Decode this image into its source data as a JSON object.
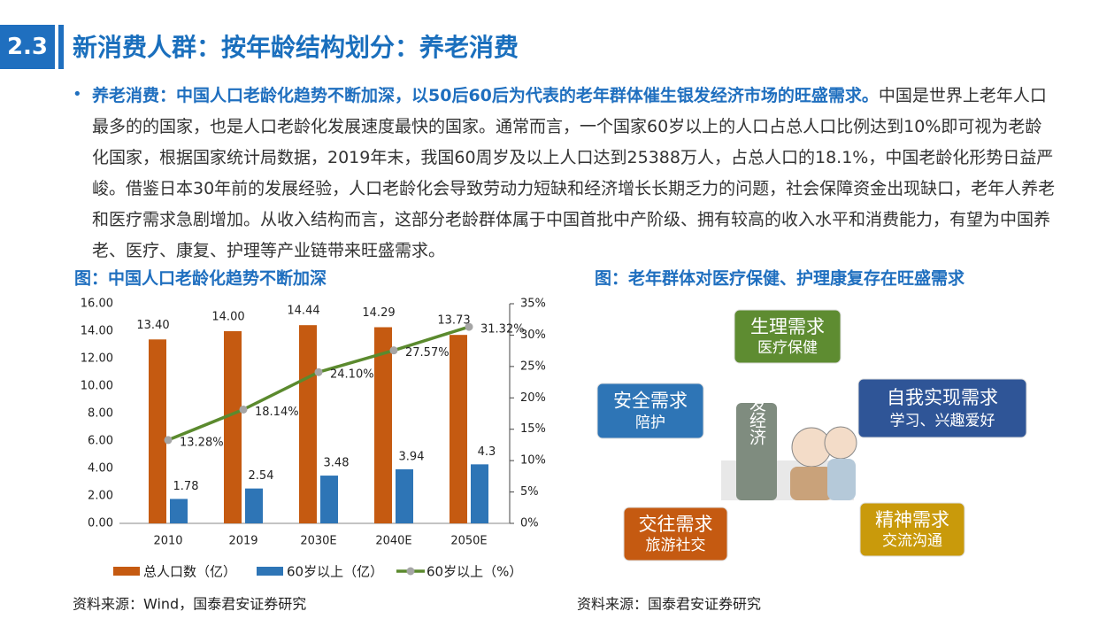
{
  "header": {
    "number": "2.3",
    "title": "新消费人群：按年龄结构划分：养老消费"
  },
  "bullet": {
    "bold": "养老消费：中国人口老龄化趋势不断加深，以50后60后为代表的老年群体催生银发经济市场的旺盛需求。",
    "text": "中国是世界上老年人口最多的的国家，也是人口老龄化发展速度最快的国家。通常而言，一个国家60岁以上的人口占总人口比例达到10%即可视为老龄化国家，根据国家统计局数据，2019年末，我国60周岁及以上人口达到25388万人，占总人口的18.1%，中国老龄化形势日益严峻。借鉴日本30年前的发展经验，人口老龄化会导致劳动力短缺和经济增长长期乏力的问题，社会保障资金出现缺口，老年人养老和医疗需求急剧增加。从收入结构而言，这部分老龄群体属于中国首批中产阶级、拥有较高的收入水平和消费能力，有望为中国养老、医疗、康复、护理等产业链带来旺盛需求。"
  },
  "chart_data": {
    "type": "bar",
    "title": "图：中国人口老龄化趋势不断加深",
    "categories": [
      "2010",
      "2019",
      "2030E",
      "2040E",
      "2050E"
    ],
    "series": [
      {
        "name": "总人口数（亿）",
        "type": "bar",
        "color": "#c55a11",
        "values": [
          13.4,
          14.0,
          14.44,
          14.29,
          13.73
        ],
        "value_labels": [
          "13.40",
          "14.00",
          "14.44",
          "14.29",
          "13.73"
        ]
      },
      {
        "name": "60岁以上（亿）",
        "type": "bar",
        "color": "#2e75b6",
        "values": [
          1.78,
          2.54,
          3.48,
          3.94,
          4.3
        ]
      },
      {
        "name": "60岁以上（%）",
        "type": "line",
        "axis": "y2",
        "color": "#5b8a2e",
        "values": [
          13.28,
          18.14,
          24.1,
          27.57,
          31.32
        ],
        "value_labels": [
          "13.28%",
          "18.14%",
          "24.10%",
          "27.57%",
          "31.32%"
        ]
      }
    ],
    "ylim": [
      0,
      16
    ],
    "yticks": [
      {
        "value": 0,
        "label": "0.00"
      },
      {
        "value": 2,
        "label": "2.00"
      },
      {
        "value": 4,
        "label": "4.00"
      },
      {
        "value": 6,
        "label": "6.00"
      },
      {
        "value": 8,
        "label": "8.00"
      },
      {
        "value": 10,
        "label": "10.00"
      },
      {
        "value": 12,
        "label": "12.00"
      },
      {
        "value": 14,
        "label": "14.00"
      },
      {
        "value": 16,
        "label": "16.00"
      }
    ],
    "y2lim": [
      0,
      35
    ],
    "y2ticks": [
      {
        "value": 0,
        "label": "0%"
      },
      {
        "value": 5,
        "label": "5%"
      },
      {
        "value": 10,
        "label": "10%"
      },
      {
        "value": 15,
        "label": "15%"
      },
      {
        "value": 20,
        "label": "20%"
      },
      {
        "value": 25,
        "label": "25%"
      },
      {
        "value": 30,
        "label": "30%"
      },
      {
        "value": 35,
        "label": "35%"
      }
    ],
    "source": "资料来源：Wind，国泰君安证券研究"
  },
  "diagram": {
    "title": "图：老年群体对医疗保健、护理康复存在旺盛需求",
    "center": "银发经济",
    "nodes": [
      {
        "title": "生理需求",
        "subtitle": "医疗保健",
        "color": "#5e8c31"
      },
      {
        "title": "安全需求",
        "subtitle": "陪护",
        "color": "#2e75b6"
      },
      {
        "title": "自我实现需求",
        "subtitle": "学习、兴趣爱好",
        "color": "#2f5597"
      },
      {
        "title": "交往需求",
        "subtitle": "旅游社交",
        "color": "#c55a11"
      },
      {
        "title": "精神需求",
        "subtitle": "交流沟通",
        "color": "#c99a0b"
      }
    ],
    "source": "资料来源：国泰君安证券研究"
  }
}
